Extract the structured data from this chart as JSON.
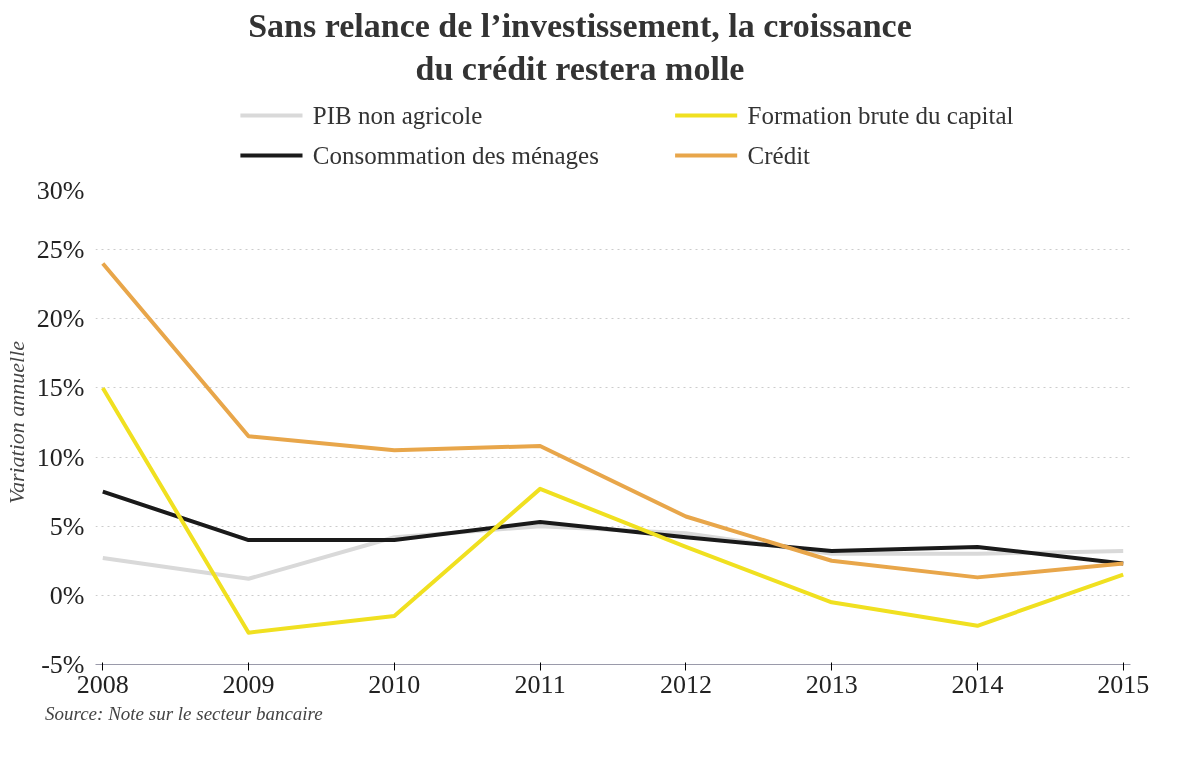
{
  "chart_data": {
    "type": "line",
    "title": "Sans relance de l’investissement, la croissance\ndu crédit restera molle",
    "ylabel": "Variation annuelle",
    "categories": [
      "2008",
      "2009",
      "2010",
      "2011",
      "2012",
      "2013",
      "2014",
      "2015"
    ],
    "series": [
      {
        "name": "PIB non agricole",
        "color": "#d9d9d9",
        "values": [
          2.7,
          1.2,
          4.2,
          5.0,
          4.5,
          3.0,
          3.0,
          3.2
        ]
      },
      {
        "name": "Consommation des ménages",
        "color": "#1a1a1a",
        "values": [
          7.5,
          4.0,
          4.0,
          5.3,
          4.2,
          3.2,
          3.5,
          2.3
        ]
      },
      {
        "name": "Formation brute du capital",
        "color": "#f0e020",
        "values": [
          15.0,
          -2.7,
          -1.5,
          7.7,
          3.5,
          -0.5,
          -2.2,
          1.5
        ]
      },
      {
        "name": "Crédit",
        "color": "#e8a64a",
        "values": [
          24.0,
          11.5,
          10.5,
          10.8,
          5.7,
          2.5,
          1.3,
          2.3
        ]
      }
    ],
    "ylim": [
      -5,
      30
    ],
    "yticks": [
      {
        "value": -5,
        "label": "-5%"
      },
      {
        "value": 0,
        "label": "0%"
      },
      {
        "value": 5,
        "label": "5%"
      },
      {
        "value": 10,
        "label": "10%"
      },
      {
        "value": 15,
        "label": "15%"
      },
      {
        "value": 20,
        "label": "20%"
      },
      {
        "value": 25,
        "label": "25%"
      },
      {
        "value": 30,
        "label": "30%"
      }
    ],
    "grid": "y",
    "legend": "top",
    "marker": "none",
    "line_style": "solid",
    "annotations": [
      "Source: Note sur le secteur bancaire"
    ]
  }
}
